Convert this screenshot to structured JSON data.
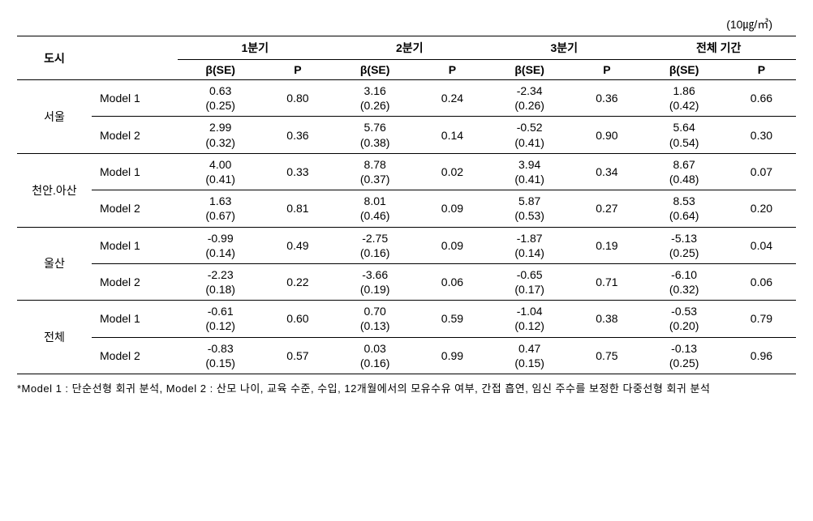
{
  "unit_label": "(10㎍/㎥)",
  "headers": {
    "city": "도시",
    "q1": "1분기",
    "q2": "2분기",
    "q3": "3분기",
    "full": "전체 기간",
    "beta": "β(SE)",
    "p": "P"
  },
  "cities": [
    "서울",
    "천안.아산",
    "울산",
    "전체"
  ],
  "models": [
    "Model 1",
    "Model 2"
  ],
  "table": {
    "rows": [
      {
        "city": "서울",
        "model": "Model 1",
        "q1_b": "0.63",
        "q1_se": "(0.25)",
        "q1_p": "0.80",
        "q2_b": "3.16",
        "q2_se": "(0.26)",
        "q2_p": "0.24",
        "q3_b": "-2.34",
        "q3_se": "(0.26)",
        "q3_p": "0.36",
        "full_b": "1.86",
        "full_se": "(0.42)",
        "full_p": "0.66"
      },
      {
        "city": "서울",
        "model": "Model 2",
        "q1_b": "2.99",
        "q1_se": "(0.32)",
        "q1_p": "0.36",
        "q2_b": "5.76",
        "q2_se": "(0.38)",
        "q2_p": "0.14",
        "q3_b": "-0.52",
        "q3_se": "(0.41)",
        "q3_p": "0.90",
        "full_b": "5.64",
        "full_se": "(0.54)",
        "full_p": "0.30"
      },
      {
        "city": "천안.아산",
        "model": "Model 1",
        "q1_b": "4.00",
        "q1_se": "(0.41)",
        "q1_p": "0.33",
        "q2_b": "8.78",
        "q2_se": "(0.37)",
        "q2_p": "0.02",
        "q3_b": "3.94",
        "q3_se": "(0.41)",
        "q3_p": "0.34",
        "full_b": "8.67",
        "full_se": "(0.48)",
        "full_p": "0.07"
      },
      {
        "city": "천안.아산",
        "model": "Model 2",
        "q1_b": "1.63",
        "q1_se": "(0.67)",
        "q1_p": "0.81",
        "q2_b": "8.01",
        "q2_se": "(0.46)",
        "q2_p": "0.09",
        "q3_b": "5.87",
        "q3_se": "(0.53)",
        "q3_p": "0.27",
        "full_b": "8.53",
        "full_se": "(0.64)",
        "full_p": "0.20"
      },
      {
        "city": "울산",
        "model": "Model 1",
        "q1_b": "-0.99",
        "q1_se": "(0.14)",
        "q1_p": "0.49",
        "q2_b": "-2.75",
        "q2_se": "(0.16)",
        "q2_p": "0.09",
        "q3_b": "-1.87",
        "q3_se": "(0.14)",
        "q3_p": "0.19",
        "full_b": "-5.13",
        "full_se": "(0.25)",
        "full_p": "0.04"
      },
      {
        "city": "울산",
        "model": "Model 2",
        "q1_b": "-2.23",
        "q1_se": "(0.18)",
        "q1_p": "0.22",
        "q2_b": "-3.66",
        "q2_se": "(0.19)",
        "q2_p": "0.06",
        "q3_b": "-0.65",
        "q3_se": "(0.17)",
        "q3_p": "0.71",
        "full_b": "-6.10",
        "full_se": "(0.32)",
        "full_p": "0.06"
      },
      {
        "city": "전체",
        "model": "Model 1",
        "q1_b": "-0.61",
        "q1_se": "(0.12)",
        "q1_p": "0.60",
        "q2_b": "0.70",
        "q2_se": "(0.13)",
        "q2_p": "0.59",
        "q3_b": "-1.04",
        "q3_se": "(0.12)",
        "q3_p": "0.38",
        "full_b": "-0.53",
        "full_se": "(0.20)",
        "full_p": "0.79"
      },
      {
        "city": "전체",
        "model": "Model 2",
        "q1_b": "-0.83",
        "q1_se": "(0.15)",
        "q1_p": "0.57",
        "q2_b": "0.03",
        "q2_se": "(0.16)",
        "q2_p": "0.99",
        "q3_b": "0.47",
        "q3_se": "(0.15)",
        "q3_p": "0.75",
        "full_b": "-0.13",
        "full_se": "(0.25)",
        "full_p": "0.96"
      }
    ]
  },
  "footnote": "*Model 1 : 단순선형 회귀 분석, Model 2 : 산모 나이, 교육 수준, 수입, 12개월에서의 모유수유 여부, 간접 흡연, 임신 주수를 보정한 다중선형 회귀 분석"
}
